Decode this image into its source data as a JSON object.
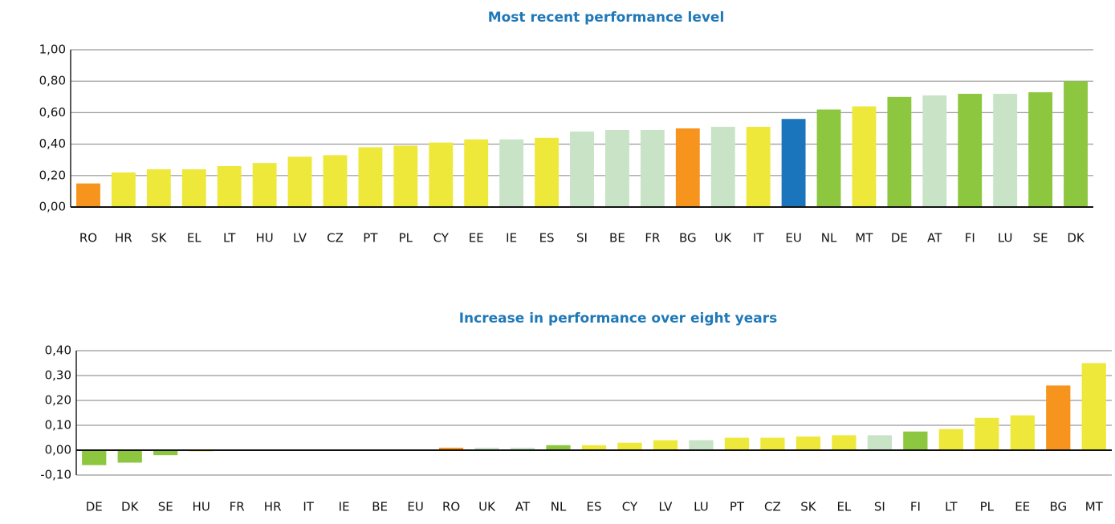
{
  "chart_data": [
    {
      "type": "bar",
      "title": "Most recent performance level",
      "categories": [
        "RO",
        "HR",
        "SK",
        "EL",
        "LT",
        "HU",
        "LV",
        "CZ",
        "PT",
        "PL",
        "CY",
        "EE",
        "IE",
        "ES",
        "SI",
        "BE",
        "FR",
        "BG",
        "UK",
        "IT",
        "EU",
        "NL",
        "MT",
        "DE",
        "AT",
        "FI",
        "LU",
        "SE",
        "DK"
      ],
      "values": [
        0.15,
        0.22,
        0.24,
        0.24,
        0.26,
        0.28,
        0.32,
        0.33,
        0.38,
        0.39,
        0.41,
        0.43,
        0.43,
        0.44,
        0.48,
        0.49,
        0.49,
        0.5,
        0.51,
        0.51,
        0.56,
        0.62,
        0.64,
        0.7,
        0.71,
        0.72,
        0.72,
        0.73,
        0.8
      ],
      "colors": [
        "#f7941d",
        "#eee83a",
        "#eee83a",
        "#eee83a",
        "#eee83a",
        "#eee83a",
        "#eee83a",
        "#eee83a",
        "#eee83a",
        "#eee83a",
        "#eee83a",
        "#eee83a",
        "#c8e3c6",
        "#eee83a",
        "#c8e3c6",
        "#c8e3c6",
        "#c8e3c6",
        "#f7941d",
        "#c8e3c6",
        "#eee83a",
        "#1b75bc",
        "#8dc63f",
        "#eee83a",
        "#8dc63f",
        "#c8e3c6",
        "#8dc63f",
        "#c8e3c6",
        "#8dc63f",
        "#8dc63f"
      ],
      "ylim": [
        0,
        1
      ],
      "yticks": [
        {
          "value": 0,
          "label": "0,00"
        },
        {
          "value": 0.2,
          "label": "0,20"
        },
        {
          "value": 0.4,
          "label": "0,40"
        },
        {
          "value": 0.6,
          "label": "0,60"
        },
        {
          "value": 0.8,
          "label": "0,80"
        },
        {
          "value": 1,
          "label": "1,00"
        }
      ],
      "grid": true
    },
    {
      "type": "bar",
      "title": "Increase in performance over eight years",
      "categories": [
        "DE",
        "DK",
        "SE",
        "HU",
        "FR",
        "HR",
        "IT",
        "IE",
        "BE",
        "EU",
        "RO",
        "UK",
        "AT",
        "NL",
        "ES",
        "CY",
        "LV",
        "LU",
        "PT",
        "CZ",
        "SK",
        "EL",
        "SI",
        "FI",
        "LT",
        "PL",
        "EE",
        "BG",
        "MT"
      ],
      "values": [
        -0.06,
        -0.05,
        -0.02,
        -0.005,
        0.0,
        -0.003,
        -0.003,
        0.0,
        0.0,
        0.0,
        0.01,
        0.01,
        0.01,
        0.02,
        0.02,
        0.03,
        0.04,
        0.04,
        0.05,
        0.05,
        0.055,
        0.06,
        0.06,
        0.075,
        0.085,
        0.13,
        0.14,
        0.26,
        0.35
      ],
      "colors": [
        "#8dc63f",
        "#8dc63f",
        "#8dc63f",
        "#eee83a",
        "#c8e3c6",
        "#eee83a",
        "#eee83a",
        "#c8e3c6",
        "#c8e3c6",
        "#1b75bc",
        "#f7941d",
        "#c8e3c6",
        "#c8e3c6",
        "#8dc63f",
        "#eee83a",
        "#eee83a",
        "#eee83a",
        "#c8e3c6",
        "#eee83a",
        "#eee83a",
        "#eee83a",
        "#eee83a",
        "#c8e3c6",
        "#8dc63f",
        "#eee83a",
        "#eee83a",
        "#eee83a",
        "#f7941d",
        "#eee83a"
      ],
      "ylim": [
        -0.1,
        0.4
      ],
      "yticks": [
        {
          "value": -0.1,
          "label": "-0,10"
        },
        {
          "value": 0,
          "label": "0,00"
        },
        {
          "value": 0.1,
          "label": "0,10"
        },
        {
          "value": 0.2,
          "label": "0,20"
        },
        {
          "value": 0.3,
          "label": "0,30"
        },
        {
          "value": 0.4,
          "label": "0,40"
        }
      ],
      "grid": true
    }
  ]
}
